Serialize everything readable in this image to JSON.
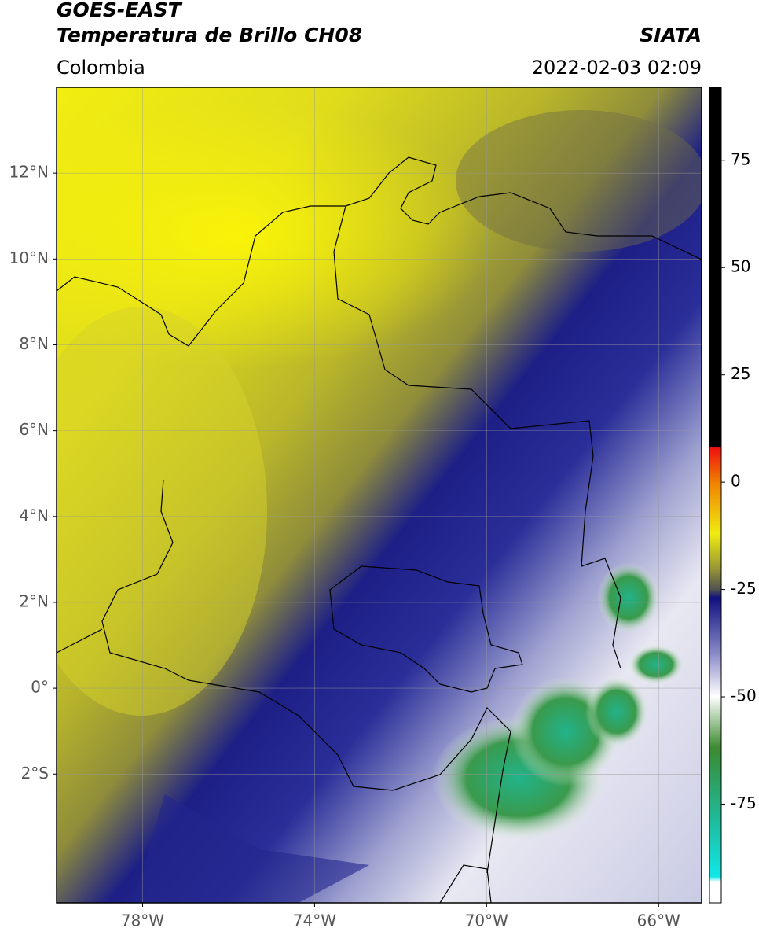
{
  "header": {
    "title": "GOES-EAST",
    "subtitle": "Temperatura de Brillo CH08",
    "source": "SIATA",
    "region": "Colombia",
    "datetime": "2022-02-03 02:09"
  },
  "map": {
    "lonlim": [
      -80,
      -65
    ],
    "latlim": [
      -5,
      14
    ],
    "lonticks": [
      {
        "value": -78,
        "label": "78°W"
      },
      {
        "value": -74,
        "label": "74°W"
      },
      {
        "value": -70,
        "label": "70°W"
      },
      {
        "value": -66,
        "label": "66°W"
      }
    ],
    "latticks": [
      {
        "value": 12,
        "label": "12°N"
      },
      {
        "value": 10,
        "label": "10°N"
      },
      {
        "value": 8,
        "label": "8°N"
      },
      {
        "value": 6,
        "label": "6°N"
      },
      {
        "value": 4,
        "label": "4°N"
      },
      {
        "value": 2,
        "label": "2°N"
      },
      {
        "value": 0,
        "label": "0°"
      },
      {
        "value": -2,
        "label": "2°S"
      }
    ],
    "grid": true
  },
  "colorbar": {
    "clim": [
      -98,
      92
    ],
    "ticks": [
      75,
      50,
      25,
      0,
      -25,
      -50,
      -75
    ]
  }
}
